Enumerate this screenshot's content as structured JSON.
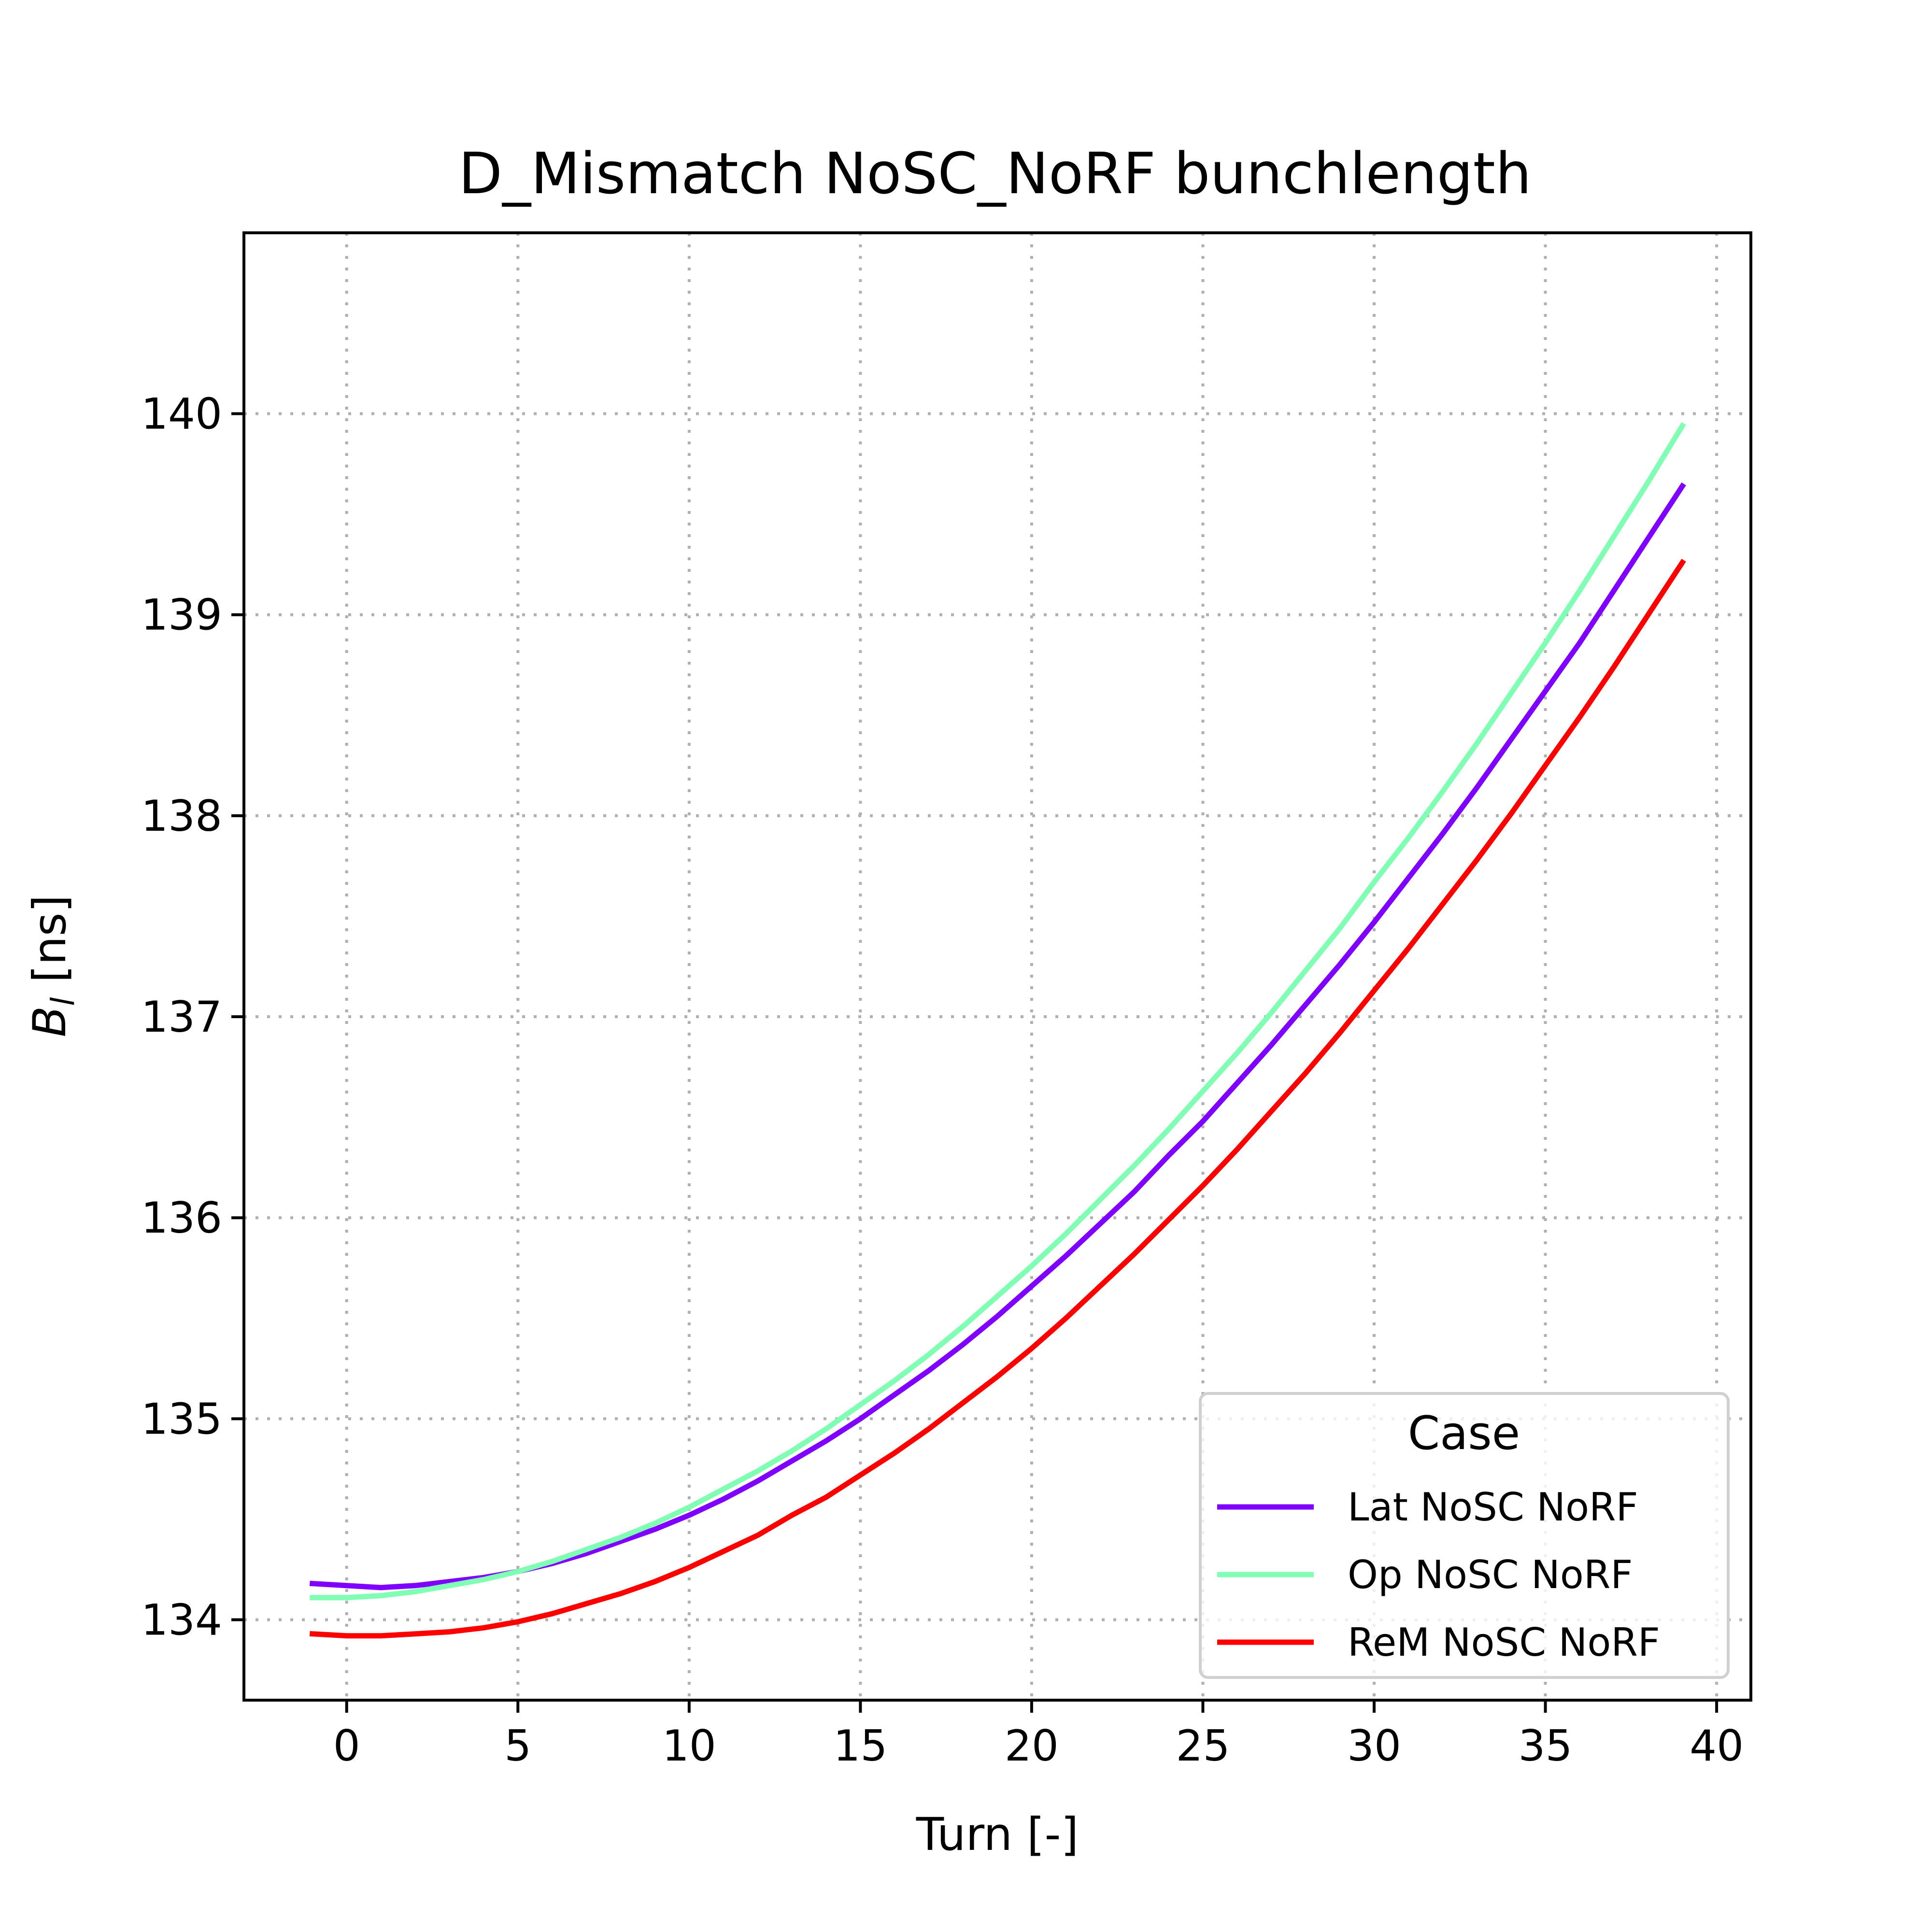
{
  "chart_data": {
    "type": "line",
    "title": "D_Mismatch NoSC_NoRF bunchlength",
    "xlabel": "Turn [-]",
    "ylabel_main": "B",
    "ylabel_sub": "l",
    "ylabel_unit": " [ns]",
    "xlim": [
      -3,
      41
    ],
    "ylim": [
      133.6,
      140.9
    ],
    "xticks": [
      0,
      5,
      10,
      15,
      20,
      25,
      30,
      35,
      40
    ],
    "yticks": [
      134,
      135,
      136,
      137,
      138,
      139,
      140
    ],
    "xtick_labels": [
      "0",
      "5",
      "10",
      "15",
      "20",
      "25",
      "30",
      "35",
      "40"
    ],
    "ytick_labels": [
      "134",
      "135",
      "136",
      "137",
      "138",
      "139",
      "140"
    ],
    "grid": true,
    "legend": {
      "title": "Case",
      "placement": "lower-right"
    },
    "x": [
      -1,
      0,
      1,
      2,
      3,
      4,
      5,
      6,
      7,
      8,
      9,
      10,
      11,
      12,
      13,
      14,
      15,
      16,
      17,
      18,
      19,
      20,
      21,
      22,
      23,
      24,
      25,
      26,
      27,
      28,
      29,
      30,
      31,
      32,
      33,
      34,
      35,
      36,
      37,
      38,
      39
    ],
    "series": [
      {
        "name": "Lat NoSC NoRF",
        "color": "#7f00ff",
        "values": [
          134.18,
          134.17,
          134.16,
          134.17,
          134.19,
          134.21,
          134.24,
          134.28,
          134.33,
          134.39,
          134.45,
          134.52,
          134.6,
          134.69,
          134.79,
          134.89,
          135.0,
          135.12,
          135.24,
          135.37,
          135.51,
          135.66,
          135.81,
          135.97,
          136.13,
          136.31,
          136.48,
          136.67,
          136.86,
          137.06,
          137.26,
          137.47,
          137.69,
          137.91,
          138.14,
          138.38,
          138.62,
          138.86,
          139.12,
          139.38,
          139.64
        ]
      },
      {
        "name": "Op NoSC NoRF",
        "color": "#80ffb4",
        "values": [
          134.11,
          134.11,
          134.12,
          134.14,
          134.17,
          134.2,
          134.24,
          134.29,
          134.35,
          134.41,
          134.48,
          134.56,
          134.65,
          134.74,
          134.84,
          134.95,
          135.07,
          135.19,
          135.32,
          135.46,
          135.61,
          135.76,
          135.92,
          136.09,
          136.26,
          136.44,
          136.63,
          136.82,
          137.02,
          137.23,
          137.44,
          137.67,
          137.89,
          138.12,
          138.36,
          138.61,
          138.86,
          139.12,
          139.39,
          139.66,
          139.94
        ]
      },
      {
        "name": "ReM NoSC NoRF",
        "color": "#ff0000",
        "values": [
          133.93,
          133.92,
          133.92,
          133.93,
          133.94,
          133.96,
          133.99,
          134.03,
          134.08,
          134.13,
          134.19,
          134.26,
          134.34,
          134.42,
          134.52,
          134.61,
          134.72,
          134.83,
          134.95,
          135.08,
          135.21,
          135.35,
          135.5,
          135.66,
          135.82,
          135.99,
          136.16,
          136.34,
          136.53,
          136.72,
          136.92,
          137.13,
          137.34,
          137.56,
          137.78,
          138.01,
          138.25,
          138.49,
          138.74,
          139.0,
          139.26
        ]
      }
    ]
  }
}
